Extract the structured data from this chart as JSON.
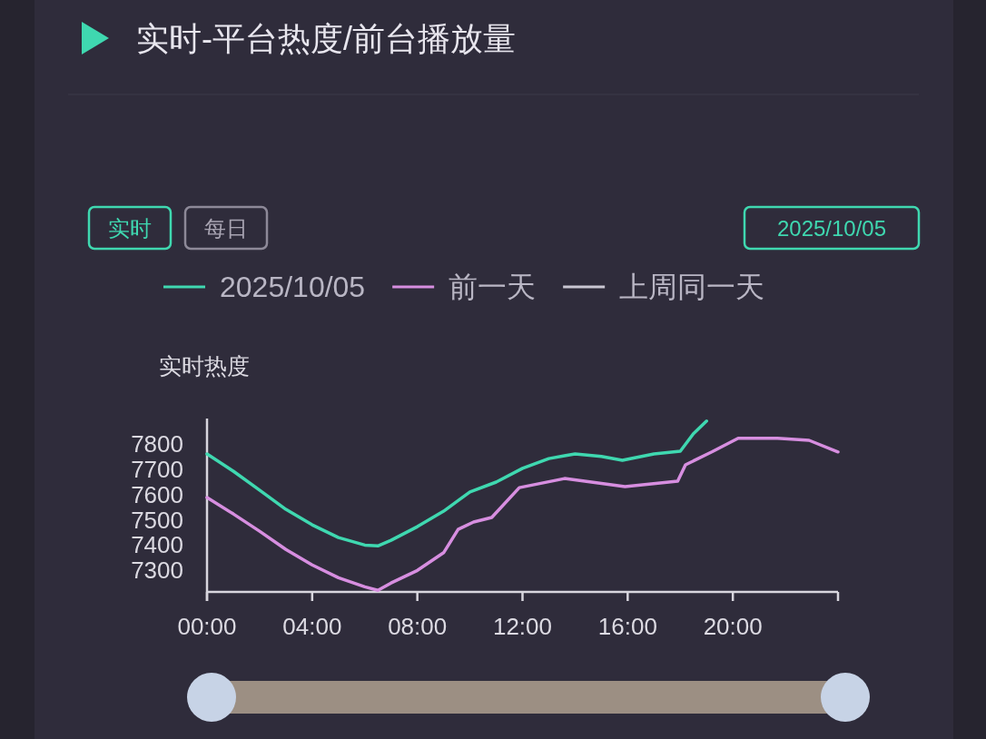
{
  "chart_data": {
    "type": "line",
    "title": "实时-平台热度/前台播放量",
    "ylabel": "实时热度",
    "annotations": [
      "实时",
      "每日",
      "2025/10/05"
    ],
    "series": [
      {
        "name": "2025/10/05",
        "color": "#3fd8b0",
        "x": [
          0,
          1,
          2,
          3,
          4,
          5,
          6,
          6.5,
          7,
          8,
          9,
          10,
          11,
          12,
          13,
          13.6,
          14,
          15,
          15.8,
          17,
          18,
          18.5,
          19
        ],
        "values": [
          7760,
          7692,
          7617,
          7541,
          7480,
          7430,
          7400,
          7397,
          7419,
          7473,
          7534,
          7610,
          7649,
          7703,
          7742,
          7753,
          7760,
          7750,
          7735,
          7760,
          7771,
          7840,
          7890
        ]
      },
      {
        "name": "前一天",
        "color": "#d78ee0",
        "x": [
          0,
          1,
          2,
          3,
          4,
          5,
          6,
          6.5,
          7,
          8,
          9,
          9.55,
          10.14,
          10.83,
          11.88,
          13.6,
          15.9,
          17.9,
          18.2,
          19.2,
          20.2,
          21.7,
          22.9,
          24
        ],
        "values": [
          7588,
          7523,
          7455,
          7383,
          7322,
          7271,
          7235,
          7221,
          7250,
          7300,
          7370,
          7462,
          7491,
          7509,
          7627,
          7663,
          7631,
          7653,
          7717,
          7768,
          7822,
          7822,
          7814,
          7768
        ]
      },
      {
        "name": "上周同一天",
        "color": "#c9c6d2"
      }
    ],
    "xlim": [
      0,
      24
    ],
    "xticks": [
      {
        "value": 0,
        "label": "00:00"
      },
      {
        "value": 4,
        "label": "04:00"
      },
      {
        "value": 8,
        "label": "08:00"
      },
      {
        "value": 12,
        "label": "12:00"
      },
      {
        "value": 16,
        "label": "16:00"
      },
      {
        "value": 20,
        "label": "20:00"
      },
      {
        "value": 24,
        "label": null
      }
    ],
    "ylim": [
      7215,
      7900
    ],
    "yticks": [
      7300,
      7400,
      7500,
      7600,
      7700,
      7800
    ],
    "legend": "top",
    "line_style": "solid"
  }
}
